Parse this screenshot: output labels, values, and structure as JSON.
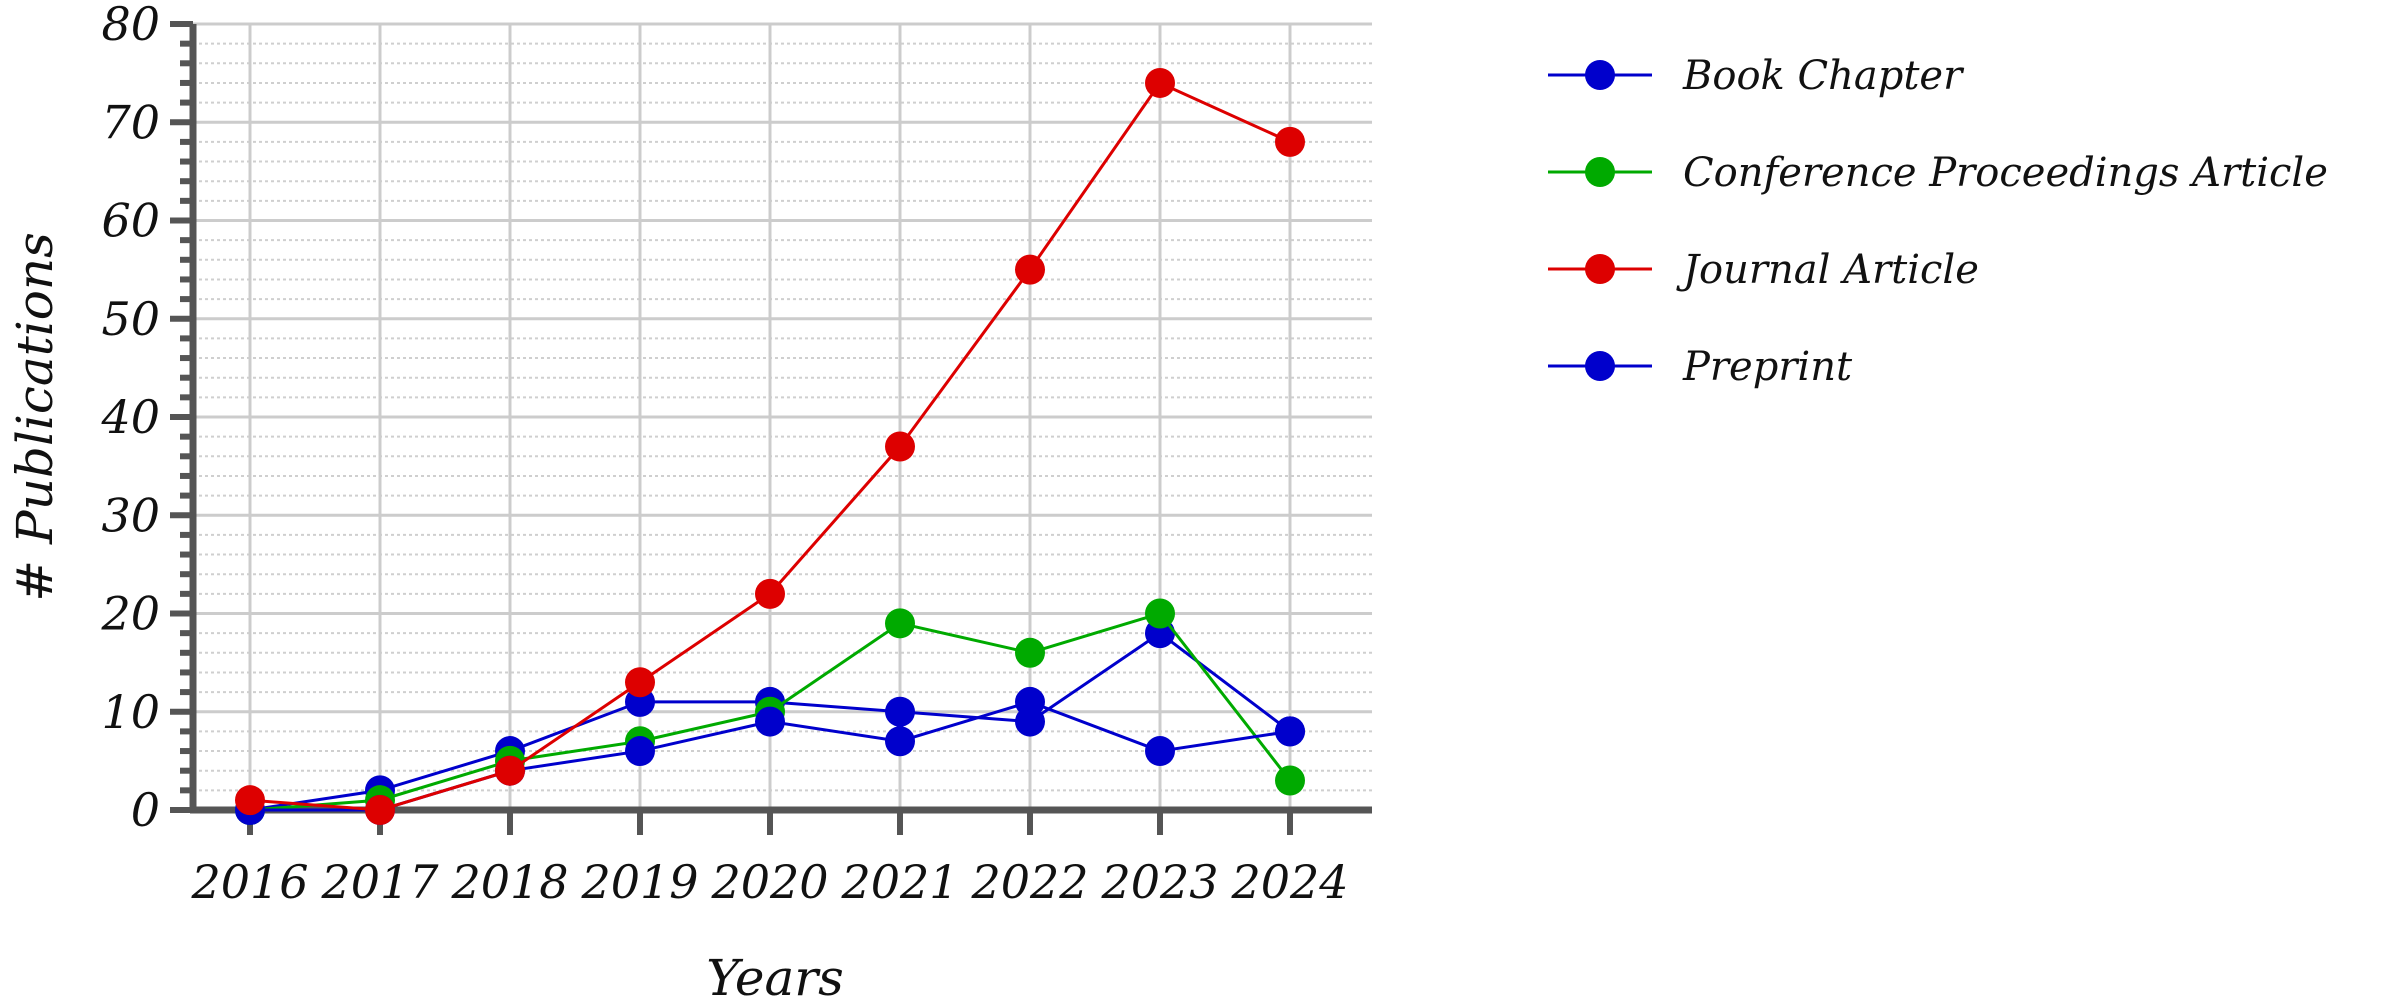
{
  "chart_data": {
    "type": "line",
    "xlabel": "Years",
    "ylabel": "# Publications",
    "x": [
      2016,
      2017,
      2018,
      2019,
      2020,
      2021,
      2022,
      2023,
      2024
    ],
    "x_tick_labels": [
      "2016",
      "2017",
      "2018",
      "2019",
      "2020",
      "2021",
      "2022",
      "2023",
      "2024"
    ],
    "ylim": [
      0,
      80
    ],
    "y_ticks": [
      0,
      10,
      20,
      30,
      40,
      50,
      60,
      70,
      80
    ],
    "y_tick_labels": [
      "0",
      "10",
      "20",
      "30",
      "40",
      "50",
      "60",
      "70",
      "80"
    ],
    "grid": true,
    "legend_position": "right",
    "series": [
      {
        "name": "Book Chapter",
        "color": "#0000cc",
        "values": [
          0,
          2,
          6,
          11,
          11,
          10,
          9,
          18,
          8
        ]
      },
      {
        "name": "Conference Proceedings Article",
        "color": "#00aa00",
        "values": [
          0,
          1,
          5,
          7,
          10,
          19,
          16,
          20,
          3
        ]
      },
      {
        "name": "Journal Article",
        "color": "#dd0000",
        "values": [
          1,
          0,
          4,
          13,
          22,
          37,
          55,
          74,
          68
        ]
      },
      {
        "name": "Preprint",
        "color": "#0000cc",
        "values": [
          0,
          0,
          4,
          6,
          9,
          7,
          11,
          6,
          8
        ]
      }
    ]
  }
}
